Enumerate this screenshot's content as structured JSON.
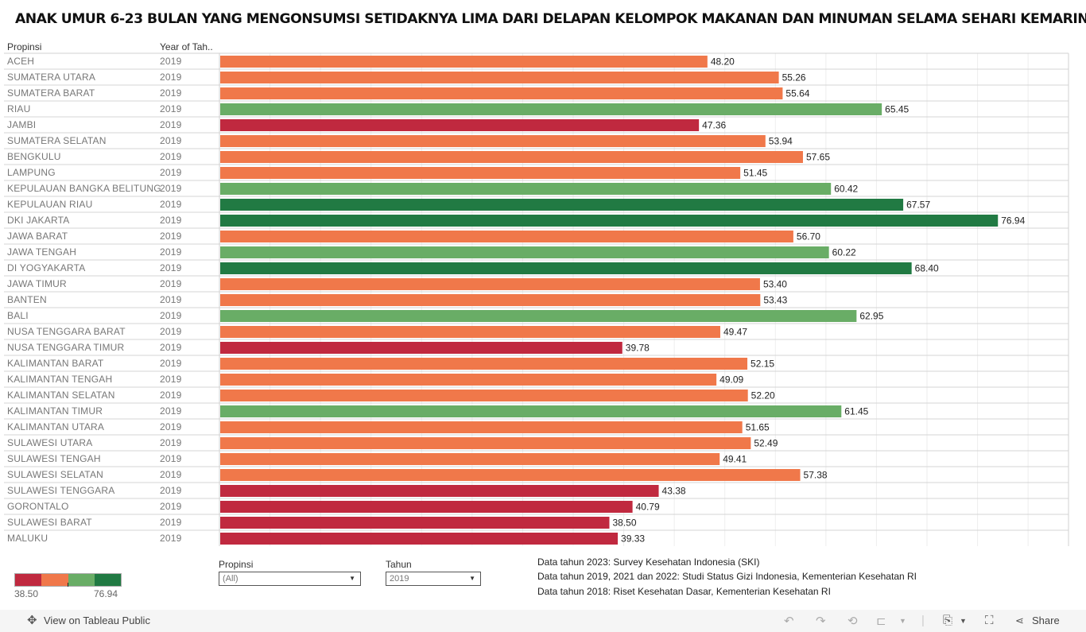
{
  "title": "ANAK UMUR 6-23 BULAN YANG MENGONSUMSI SETIDAKNYA LIMA DARI DELAPAN KELOMPOK MAKANAN DAN MINUMAN SELAMA SEHARI KEMARIN",
  "columns": {
    "province": "Propinsi",
    "year": "Year of Tah.."
  },
  "colors": {
    "low": "#c0293f",
    "mid_low": "#f0784a",
    "mid_high": "#69ad66",
    "high": "#217a43"
  },
  "chart_data": {
    "type": "bar",
    "orientation": "horizontal",
    "title": "ANAK UMUR 6-23 BULAN YANG MENGONSUMSI SETIDAKNYA LIMA DARI DELAPAN KELOMPOK MAKANAN DAN MINUMAN SELAMA SEHARI KEMARIN",
    "xlabel": "",
    "ylabel": "Propinsi",
    "xlim": [
      0,
      84
    ],
    "grid_step": 5,
    "grid": true,
    "color_scale": {
      "min": 38.5,
      "max": 76.94,
      "bins": [
        "#c0293f",
        "#f0784a",
        "#69ad66",
        "#217a43"
      ]
    },
    "categories": [
      "ACEH",
      "SUMATERA UTARA",
      "SUMATERA BARAT",
      "RIAU",
      "JAMBI",
      "SUMATERA SELATAN",
      "BENGKULU",
      "LAMPUNG",
      "KEPULAUAN BANGKA BELITUNG",
      "KEPULAUAN RIAU",
      "DKI JAKARTA",
      "JAWA BARAT",
      "JAWA TENGAH",
      "DI YOGYAKARTA",
      "JAWA TIMUR",
      "BANTEN",
      "BALI",
      "NUSA TENGGARA BARAT",
      "NUSA TENGGARA TIMUR",
      "KALIMANTAN BARAT",
      "KALIMANTAN TENGAH",
      "KALIMANTAN SELATAN",
      "KALIMANTAN TIMUR",
      "KALIMANTAN UTARA",
      "SULAWESI UTARA",
      "SULAWESI TENGAH",
      "SULAWESI SELATAN",
      "SULAWESI TENGGARA",
      "GORONTALO",
      "SULAWESI BARAT",
      "MALUKU"
    ],
    "years": [
      "2019",
      "2019",
      "2019",
      "2019",
      "2019",
      "2019",
      "2019",
      "2019",
      "2019",
      "2019",
      "2019",
      "2019",
      "2019",
      "2019",
      "2019",
      "2019",
      "2019",
      "2019",
      "2019",
      "2019",
      "2019",
      "2019",
      "2019",
      "2019",
      "2019",
      "2019",
      "2019",
      "2019",
      "2019",
      "2019",
      "2019"
    ],
    "values": [
      48.2,
      55.26,
      55.64,
      65.45,
      47.36,
      53.94,
      57.65,
      51.45,
      60.42,
      67.57,
      76.94,
      56.7,
      60.22,
      68.4,
      53.4,
      53.43,
      62.95,
      49.47,
      39.78,
      52.15,
      49.09,
      52.2,
      61.45,
      51.65,
      52.49,
      49.41,
      57.38,
      43.38,
      40.79,
      38.5,
      39.33
    ],
    "value_labels": [
      "48.20",
      "55.26",
      "55.64",
      "65.45",
      "47.36",
      "53.94",
      "57.65",
      "51.45",
      "60.42",
      "67.57",
      "76.94",
      "56.70",
      "60.22",
      "68.40",
      "53.40",
      "53.43",
      "62.95",
      "49.47",
      "39.78",
      "52.15",
      "49.09",
      "52.20",
      "61.45",
      "51.65",
      "52.49",
      "49.41",
      "57.38",
      "43.38",
      "40.79",
      "38.50",
      "39.33"
    ],
    "bar_colors": [
      "#f0784a",
      "#f0784a",
      "#f0784a",
      "#69ad66",
      "#c0293f",
      "#f0784a",
      "#f0784a",
      "#f0784a",
      "#69ad66",
      "#217a43",
      "#217a43",
      "#f0784a",
      "#69ad66",
      "#217a43",
      "#f0784a",
      "#f0784a",
      "#69ad66",
      "#f0784a",
      "#c0293f",
      "#f0784a",
      "#f0784a",
      "#f0784a",
      "#69ad66",
      "#f0784a",
      "#f0784a",
      "#f0784a",
      "#f0784a",
      "#c0293f",
      "#c0293f",
      "#c0293f",
      "#c0293f"
    ]
  },
  "legend": {
    "min_label": "38.50",
    "max_label": "76.94"
  },
  "filters": {
    "province": {
      "label": "Propinsi",
      "value": "(All)"
    },
    "year": {
      "label": "Tahun",
      "value": "2019"
    }
  },
  "notes": [
    "Data tahun 2023: Survey Kesehatan Indonesia (SKI)",
    "Data tahun 2019, 2021 dan 2022: Studi Status  Gizi Indonesia, Kementerian Kesehatan RI",
    "Data tahun 2018: Riset Kesehatan Dasar, Kementerian Kesehatan RI"
  ],
  "toolbar": {
    "view_on_tableau": "View on Tableau Public",
    "share": "Share",
    "icons": {
      "logo": "tableau-logo-icon",
      "undo": "undo-icon",
      "redo": "redo-icon",
      "revert": "revert-icon",
      "refresh": "refresh-icon",
      "download": "download-icon",
      "fullscreen": "fullscreen-icon",
      "share": "share-icon"
    }
  }
}
